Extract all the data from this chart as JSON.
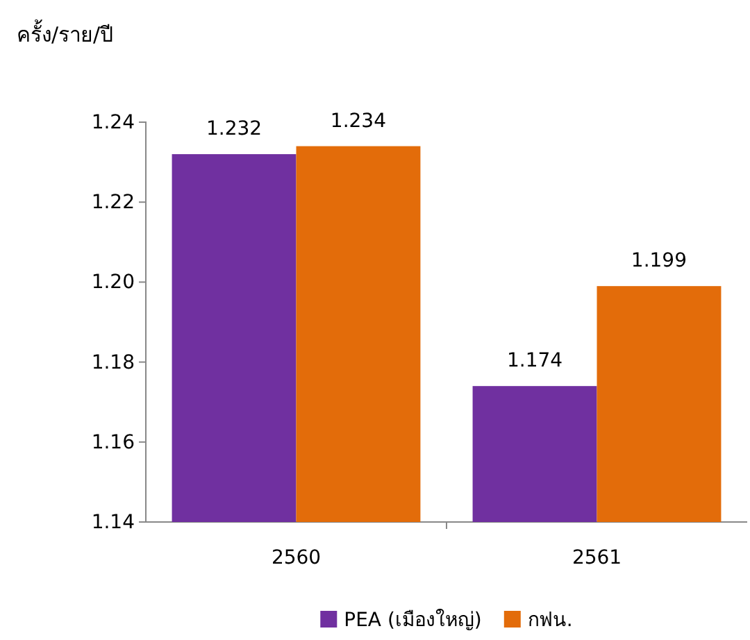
{
  "chart_data": {
    "type": "bar",
    "ylabel": "ครั้ง/ราย/ปี",
    "categories": [
      "2560",
      "2561"
    ],
    "series": [
      {
        "name": "PEA (เมืองใหญ่)",
        "color": "#7030a0",
        "values": [
          1.232,
          1.174
        ]
      },
      {
        "name": "กฟน.",
        "color": "#e36c0a",
        "values": [
          1.234,
          1.199
        ]
      }
    ],
    "ylim": [
      1.14,
      1.24
    ],
    "yticks": [
      1.14,
      1.16,
      1.18,
      {
        "value": 1.2,
        "label": "1.20"
      },
      1.22,
      1.24
    ],
    "grid": false,
    "legend": "bottom",
    "data_labels": true
  }
}
